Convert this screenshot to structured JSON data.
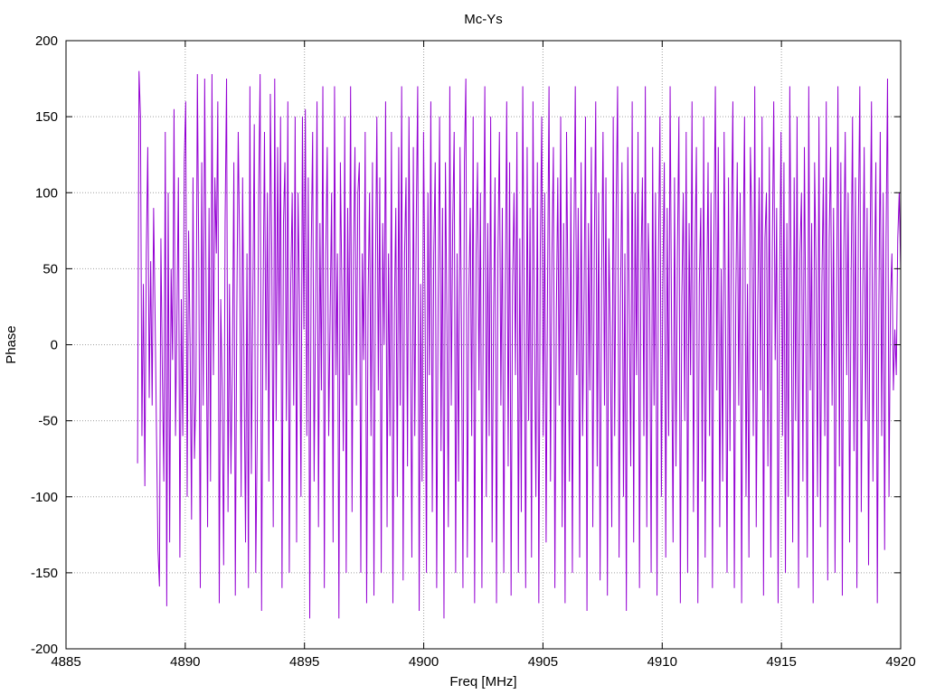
{
  "chart_data": {
    "type": "line",
    "title": "Mc-Ys",
    "xlabel": "Freq [MHz]",
    "ylabel": "Phase",
    "xlim": [
      4885,
      4920
    ],
    "ylim": [
      -200,
      200
    ],
    "xticks": [
      4885,
      4890,
      4895,
      4900,
      4905,
      4910,
      4915,
      4920
    ],
    "yticks": [
      -200,
      -150,
      -100,
      -50,
      0,
      50,
      100,
      150,
      200
    ],
    "grid": true,
    "legend": "none",
    "series": [
      {
        "color": "#9400d3",
        "x_start": 4888.0,
        "x_end": 4920.0,
        "x_step": 0.05,
        "values_note_range": [
          -180,
          180
        ],
        "values": [
          -78,
          180,
          150,
          -60,
          40,
          -93,
          60,
          130,
          -35,
          55,
          -40,
          90,
          20,
          -60,
          -135,
          -159,
          70,
          -20,
          -90,
          140,
          -172,
          100,
          -130,
          50,
          -10,
          155,
          -60,
          20,
          110,
          -140,
          30,
          -60,
          120,
          160,
          -100,
          75,
          0,
          -115,
          110,
          -75,
          -30,
          178,
          50,
          -160,
          120,
          -40,
          175,
          30,
          -120,
          90,
          -90,
          178,
          -20,
          110,
          60,
          160,
          -170,
          30,
          -30,
          -145,
          80,
          175,
          -110,
          40,
          -85,
          -12,
          120,
          -165,
          20,
          140,
          60,
          -100,
          110,
          -20,
          -130,
          60,
          -160,
          170,
          -85,
          30,
          145,
          -150,
          -60,
          100,
          178,
          -175,
          25,
          140,
          -30,
          100,
          -90,
          165,
          60,
          -120,
          175,
          -50,
          130,
          0,
          150,
          -160,
          80,
          120,
          -50,
          160,
          -150,
          40,
          100,
          -40,
          150,
          -130,
          100,
          30,
          -100,
          150,
          10,
          155,
          -60,
          110,
          -180,
          60,
          140,
          -90,
          20,
          160,
          -120,
          80,
          -30,
          170,
          -160,
          60,
          130,
          -60,
          20,
          100,
          -130,
          170,
          -20,
          60,
          -180,
          120,
          40,
          -70,
          150,
          -150,
          90,
          -20,
          170,
          -110,
          60,
          130,
          -40,
          100,
          120,
          -150,
          60,
          -10,
          140,
          -170,
          30,
          100,
          -60,
          120,
          -165,
          40,
          150,
          -30,
          110,
          -150,
          80,
          0,
          160,
          -120,
          60,
          -60,
          140,
          -170,
          20,
          90,
          -100,
          130,
          -40,
          170,
          -155,
          60,
          110,
          -80,
          150,
          10,
          -140,
          130,
          -60,
          80,
          170,
          -175,
          40,
          -90,
          140,
          30,
          -150,
          100,
          -20,
          160,
          -110,
          60,
          120,
          -160,
          30,
          150,
          -70,
          90,
          -180,
          120,
          20,
          -120,
          170,
          -40,
          80,
          140,
          -150,
          60,
          -90,
          130,
          10,
          -160,
          120,
          175,
          -140,
          30,
          90,
          -60,
          150,
          -170,
          60,
          120,
          -30,
          100,
          -160,
          40,
          170,
          -100,
          80,
          -60,
          150,
          -130,
          20,
          110,
          -170,
          60,
          140,
          -40,
          90,
          -150,
          30,
          160,
          -80,
          120,
          -165,
          40,
          100,
          -20,
          140,
          -150,
          70,
          -110,
          170,
          20,
          -160,
          130,
          -50,
          90,
          -140,
          160,
          10,
          -100,
          120,
          -170,
          60,
          150,
          -60,
          100,
          -130,
          40,
          170,
          -90,
          60,
          130,
          -160,
          20,
          110,
          -40,
          150,
          -120,
          80,
          -170,
          140,
          30,
          -90,
          110,
          -150,
          60,
          170,
          -20,
          90,
          -140,
          120,
          -60,
          30,
          150,
          -175,
          80,
          -30,
          130,
          -120,
          60,
          160,
          -80,
          100,
          -155,
          40,
          140,
          -40,
          110,
          -165,
          70,
          10,
          -120,
          150,
          -60,
          90,
          170,
          -140,
          30,
          120,
          -100,
          60,
          -175,
          130,
          20,
          -80,
          160,
          -130,
          100,
          -20,
          140,
          -160,
          50,
          110,
          -60,
          170,
          -120,
          80,
          30,
          -150,
          130,
          -40,
          100,
          -165,
          60,
          150,
          -100,
          40,
          120,
          -140,
          90,
          -60,
          170,
          10,
          -130,
          110,
          -80,
          60,
          150,
          -170,
          30,
          100,
          -50,
          140,
          -150,
          80,
          -20,
          160,
          -110,
          60,
          130,
          -170,
          40,
          90,
          -90,
          150,
          -140,
          20,
          120,
          -60,
          100,
          -160,
          70,
          170,
          -30,
          130,
          -120,
          50,
          -90,
          140,
          10,
          -150,
          110,
          -70,
          80,
          160,
          -160,
          30,
          120,
          -40,
          100,
          -170,
          60,
          150,
          -100,
          40,
          -140,
          130,
          80,
          -60,
          170,
          -120,
          20,
          110,
          -30,
          150,
          -165,
          70,
          100,
          -80,
          130,
          -140,
          60,
          160,
          -10,
          90,
          -170,
          40,
          140,
          -60,
          120,
          -150,
          80,
          -100,
          170,
          30,
          -130,
          110,
          -50,
          150,
          -160,
          60,
          100,
          -90,
          130,
          10,
          -140,
          170,
          -30,
          80,
          -170,
          120,
          50,
          -100,
          150,
          -120,
          40,
          110,
          -60,
          160,
          -155,
          70,
          130,
          -40,
          90,
          -150,
          20,
          170,
          -80,
          120,
          -165,
          60,
          140,
          -20,
          100,
          -130,
          40,
          150,
          -70,
          110,
          -160,
          80,
          170,
          -110,
          30,
          130,
          -50,
          90,
          -145,
          60,
          160,
          -90,
          40,
          120,
          -170,
          20,
          140,
          -60,
          100,
          -135,
          70,
          175,
          -100,
          30,
          60,
          -30,
          10,
          -20,
          70,
          100,
          50
        ]
      }
    ]
  }
}
